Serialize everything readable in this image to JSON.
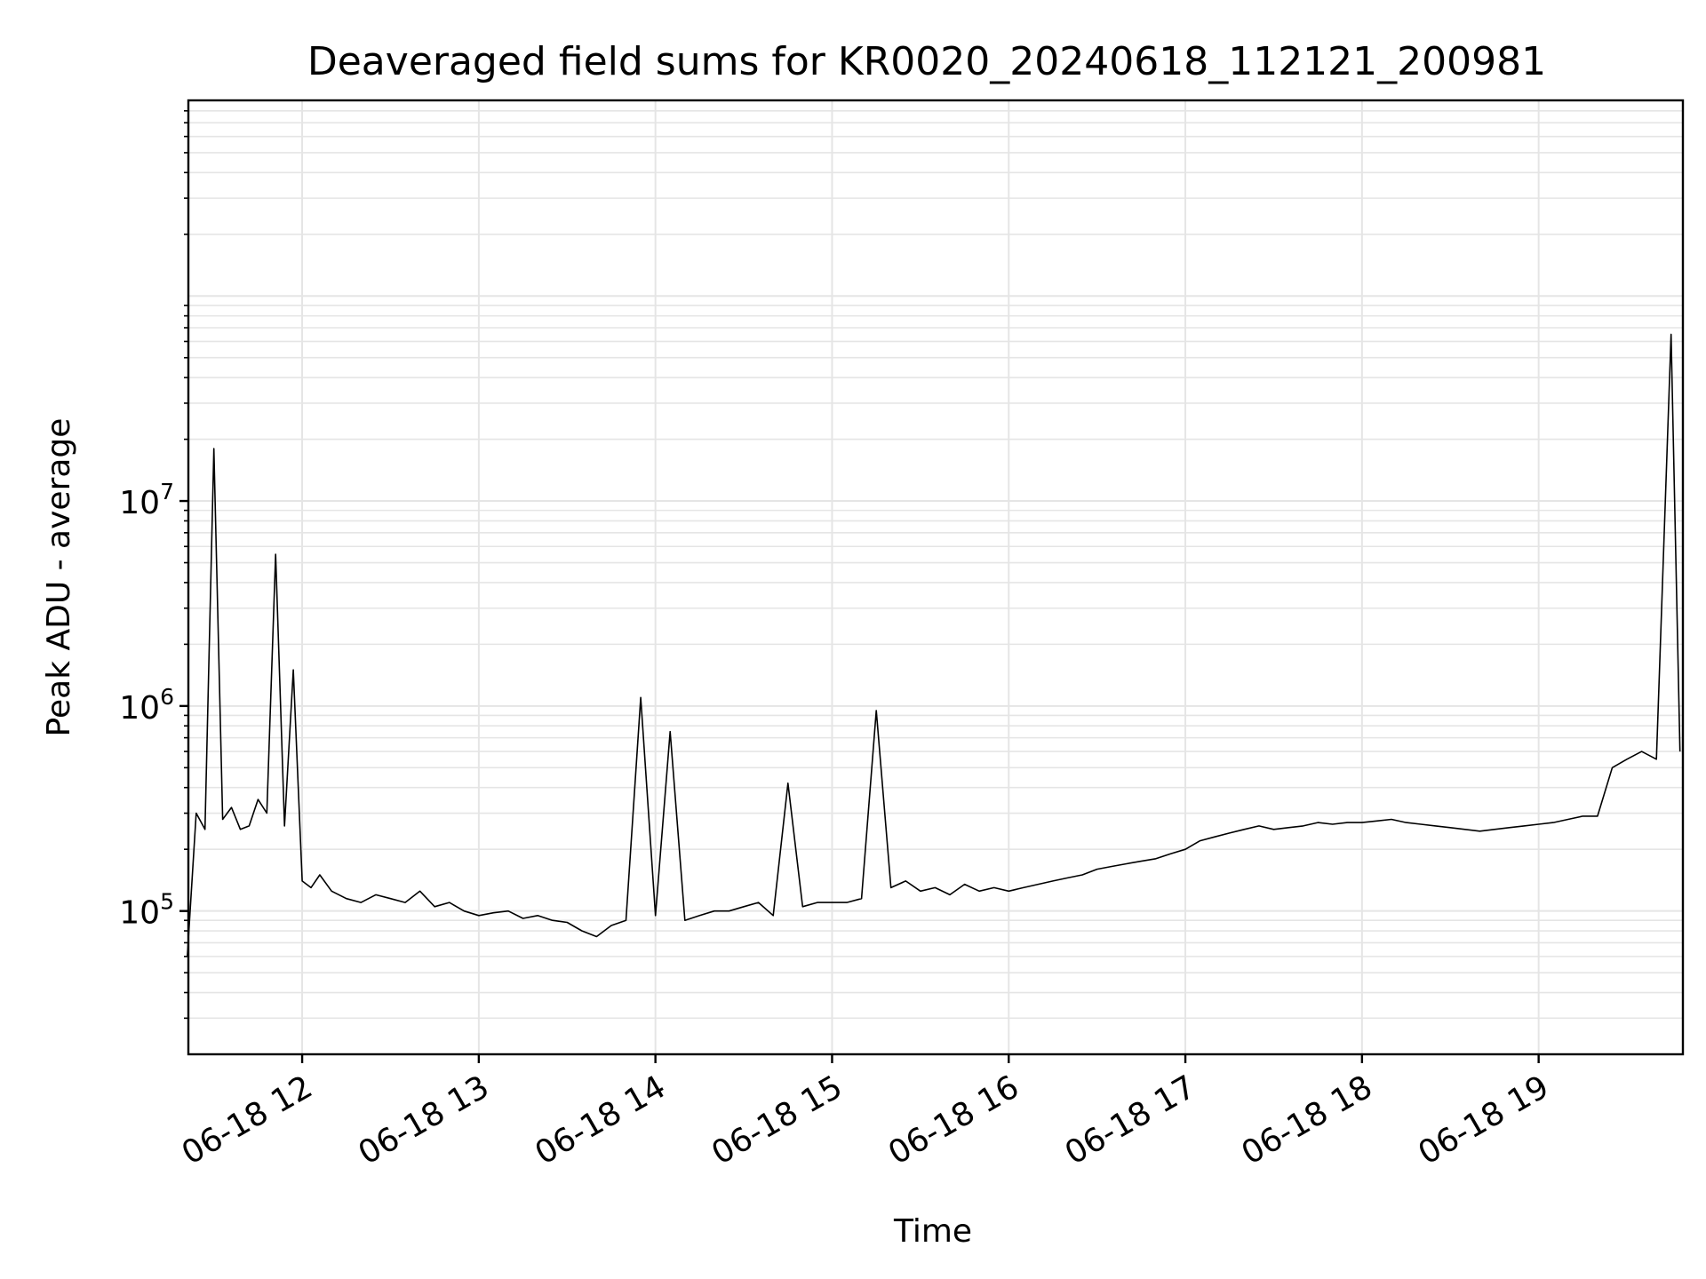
{
  "chart_data": {
    "type": "line",
    "title": "Deaveraged field sums for KR0020_20240618_112121_200981",
    "xlabel": "Time",
    "ylabel": "Peak ADU - average",
    "yscale": "log",
    "grid": true,
    "line_color": "#000000",
    "grid_color": "#e5e5e5",
    "xlim": [
      "06-18 11:21:21",
      "06-18 19:49:00"
    ],
    "ylim": [
      20000,
      900000000
    ],
    "x_ticks": [
      {
        "t": "06-18 12",
        "label": "06-18 12"
      },
      {
        "t": "06-18 13",
        "label": "06-18 13"
      },
      {
        "t": "06-18 14",
        "label": "06-18 14"
      },
      {
        "t": "06-18 15",
        "label": "06-18 15"
      },
      {
        "t": "06-18 16",
        "label": "06-18 16"
      },
      {
        "t": "06-18 17",
        "label": "06-18 17"
      },
      {
        "t": "06-18 18",
        "label": "06-18 18"
      },
      {
        "t": "06-18 19",
        "label": "06-18 19"
      }
    ],
    "y_ticks": [
      {
        "value": 100000,
        "base": "10",
        "exp": "5"
      },
      {
        "value": 1000000,
        "base": "10",
        "exp": "6"
      },
      {
        "value": 10000000,
        "base": "10",
        "exp": "7"
      }
    ],
    "series": [
      {
        "x": [
          "06-18 11:21",
          "06-18 11:24",
          "06-18 11:27",
          "06-18 11:30",
          "06-18 11:33",
          "06-18 11:36",
          "06-18 11:39",
          "06-18 11:42",
          "06-18 11:45",
          "06-18 11:48",
          "06-18 11:51",
          "06-18 11:54",
          "06-18 11:57",
          "06-18 12:00",
          "06-18 12:03",
          "06-18 12:06",
          "06-18 12:10",
          "06-18 12:15",
          "06-18 12:20",
          "06-18 12:25",
          "06-18 12:30",
          "06-18 12:35",
          "06-18 12:40",
          "06-18 12:45",
          "06-18 12:50",
          "06-18 12:55",
          "06-18 13:00",
          "06-18 13:05",
          "06-18 13:10",
          "06-18 13:15",
          "06-18 13:20",
          "06-18 13:25",
          "06-18 13:30",
          "06-18 13:35",
          "06-18 13:40",
          "06-18 13:45",
          "06-18 13:50",
          "06-18 13:55",
          "06-18 14:00",
          "06-18 14:05",
          "06-18 14:10",
          "06-18 14:15",
          "06-18 14:20",
          "06-18 14:25",
          "06-18 14:30",
          "06-18 14:35",
          "06-18 14:40",
          "06-18 14:45",
          "06-18 14:50",
          "06-18 14:55",
          "06-18 15:00",
          "06-18 15:05",
          "06-18 15:10",
          "06-18 15:15",
          "06-18 15:20",
          "06-18 15:25",
          "06-18 15:30",
          "06-18 15:35",
          "06-18 15:40",
          "06-18 15:45",
          "06-18 15:50",
          "06-18 15:55",
          "06-18 16:00",
          "06-18 16:05",
          "06-18 16:10",
          "06-18 16:15",
          "06-18 16:20",
          "06-18 16:25",
          "06-18 16:30",
          "06-18 16:35",
          "06-18 16:40",
          "06-18 16:45",
          "06-18 16:50",
          "06-18 16:55",
          "06-18 17:00",
          "06-18 17:05",
          "06-18 17:10",
          "06-18 17:15",
          "06-18 17:20",
          "06-18 17:25",
          "06-18 17:30",
          "06-18 17:35",
          "06-18 17:40",
          "06-18 17:45",
          "06-18 17:50",
          "06-18 17:55",
          "06-18 18:00",
          "06-18 18:05",
          "06-18 18:10",
          "06-18 18:15",
          "06-18 18:20",
          "06-18 18:25",
          "06-18 18:30",
          "06-18 18:35",
          "06-18 18:40",
          "06-18 18:45",
          "06-18 18:50",
          "06-18 18:55",
          "06-18 19:00",
          "06-18 19:05",
          "06-18 19:10",
          "06-18 19:15",
          "06-18 19:20",
          "06-18 19:25",
          "06-18 19:30",
          "06-18 19:35",
          "06-18 19:40",
          "06-18 19:45",
          "06-18 19:48"
        ],
        "y": [
          60000,
          300000,
          250000,
          18000000,
          280000,
          320000,
          250000,
          260000,
          350000,
          300000,
          5500000,
          260000,
          1500000,
          140000,
          130000,
          150000,
          125000,
          115000,
          110000,
          120000,
          115000,
          110000,
          125000,
          105000,
          110000,
          100000,
          95000,
          98000,
          100000,
          92000,
          95000,
          90000,
          88000,
          80000,
          75000,
          85000,
          90000,
          1100000,
          95000,
          750000,
          90000,
          95000,
          100000,
          100000,
          105000,
          110000,
          95000,
          420000,
          105000,
          110000,
          110000,
          110000,
          115000,
          950000,
          130000,
          140000,
          125000,
          130000,
          120000,
          135000,
          125000,
          130000,
          125000,
          130000,
          135000,
          140000,
          145000,
          150000,
          160000,
          165000,
          170000,
          175000,
          180000,
          190000,
          200000,
          220000,
          230000,
          240000,
          250000,
          260000,
          250000,
          255000,
          260000,
          270000,
          265000,
          270000,
          270000,
          275000,
          280000,
          270000,
          265000,
          260000,
          255000,
          250000,
          245000,
          250000,
          255000,
          260000,
          265000,
          270000,
          280000,
          290000,
          290000,
          500000,
          550000,
          600000,
          550000,
          65000000,
          600000
        ]
      }
    ]
  }
}
